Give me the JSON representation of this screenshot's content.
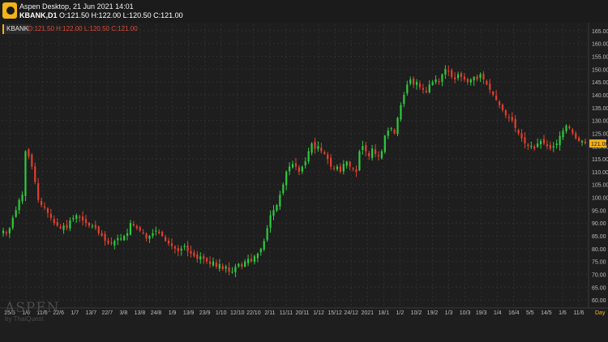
{
  "window": {
    "title": "Aspen Desktop, 21 Jun 2021 14:01",
    "symbol_timeframe": "KBANK,D1",
    "ohlc": "O:121.50 H:122.00 L:120.50 C:121.00"
  },
  "chart_tab": {
    "symbol": "KBANK",
    "ohlc": "O:121.50 H:122.00 L:120.50 C:121.00"
  },
  "watermark": {
    "main": "ASPEN",
    "sub": "by ThaiQuest"
  },
  "colors": {
    "background": "#1e1e1e",
    "grid": "#2e2e2e",
    "up": "#2ecc40",
    "down": "#e0412f",
    "price_tag": "#f2b21a",
    "axis_text": "#bdbdbd"
  },
  "chart_data": {
    "type": "candlestick",
    "title": "",
    "y_axis": {
      "side": "right",
      "min": 57.5,
      "max": 167.5,
      "ticks": [
        "60.00",
        "65.00",
        "70.00",
        "75.00",
        "80.00",
        "85.00",
        "90.00",
        "95.00",
        "100.00",
        "105.00",
        "110.00",
        "115.00",
        "120.00",
        "125.00",
        "130.00",
        "135.00",
        "140.00",
        "145.00",
        "150.00",
        "155.00",
        "160.00",
        "165.00"
      ]
    },
    "x_axis": {
      "ticks": [
        "25/5",
        "1/6",
        "11/6",
        "22/6",
        "1/7",
        "13/7",
        "22/7",
        "3/8",
        "13/8",
        "24/8",
        "1/9",
        "13/9",
        "23/9",
        "1/10",
        "12/10",
        "22/10",
        "2/11",
        "11/11",
        "20/11",
        "1/12",
        "15/12",
        "24/12",
        "2021",
        "18/1",
        "1/2",
        "10/2",
        "19/2",
        "1/3",
        "10/3",
        "19/3",
        "1/4",
        "16/4",
        "5/5",
        "14/5",
        "1/6",
        "11/6"
      ],
      "unit": "Day"
    },
    "last_price": "121.00",
    "grid": true,
    "legend": "none",
    "closes": [
      87,
      86,
      88,
      92,
      95,
      99,
      101,
      118,
      116,
      112,
      106,
      99,
      97,
      96,
      94,
      92,
      90,
      89,
      88,
      89,
      88,
      91,
      92,
      93,
      92,
      91,
      90,
      89,
      89,
      88,
      86,
      85,
      83,
      82,
      82,
      83,
      84,
      84,
      85,
      86,
      90,
      89,
      88,
      87,
      86,
      84,
      85,
      86,
      87,
      86,
      85,
      83,
      82,
      81,
      80,
      79,
      80,
      81,
      79,
      78,
      77,
      76,
      77,
      76,
      75,
      74,
      75,
      73,
      74,
      72,
      73,
      71,
      71,
      73,
      74,
      73,
      75,
      76,
      75,
      77,
      78,
      80,
      83,
      88,
      93,
      95,
      97,
      101,
      105,
      110,
      112,
      113,
      112,
      110,
      112,
      114,
      118,
      121,
      119,
      120,
      118,
      117,
      115,
      112,
      111,
      112,
      110,
      113,
      114,
      112,
      111,
      110,
      118,
      120,
      118,
      116,
      119,
      117,
      116,
      118,
      124,
      126,
      127,
      125,
      131,
      136,
      140,
      144,
      146,
      144,
      145,
      143,
      142,
      141,
      144,
      145,
      146,
      145,
      148,
      150,
      149,
      147,
      146,
      148,
      147,
      146,
      145,
      146,
      147,
      146,
      148,
      146,
      144,
      142,
      140,
      138,
      136,
      134,
      132,
      131,
      130,
      127,
      125,
      123,
      121,
      120,
      120,
      119,
      121,
      122,
      121,
      120,
      119,
      120,
      121,
      124,
      126,
      128,
      127,
      125,
      123,
      122,
      122,
      121
    ]
  }
}
